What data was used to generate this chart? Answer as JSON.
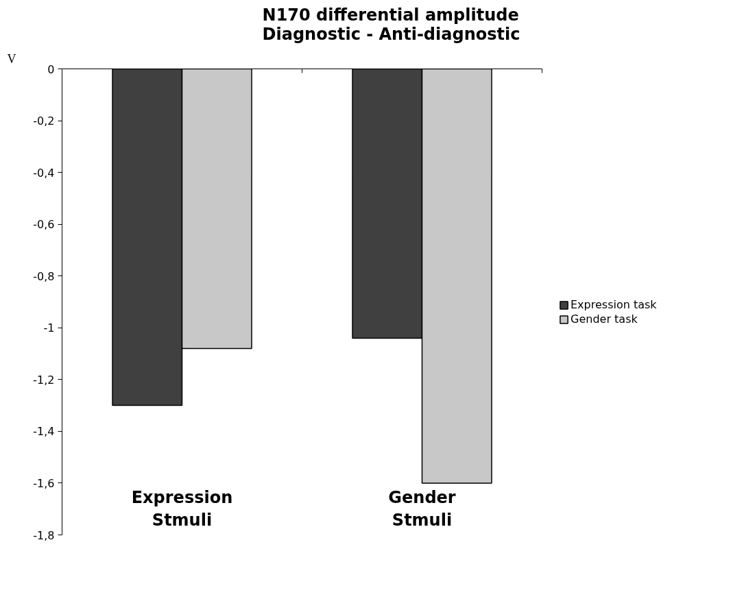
{
  "chart_data": {
    "type": "bar",
    "title": "N170 differential amplitude\nDiagnostic - Anti-diagnostic",
    "ylabel": "V",
    "categories": [
      "Expression Stmuli",
      "Gender Stmuli"
    ],
    "series": [
      {
        "name": "Expression task",
        "color": "#404040",
        "values": [
          -1.3,
          -1.04
        ]
      },
      {
        "name": "Gender task",
        "color": "#c8c8c8",
        "values": [
          -1.08,
          -1.6
        ]
      }
    ],
    "ylim": [
      -1.8,
      0
    ],
    "yticks": [
      {
        "value": 0,
        "label": "0"
      },
      {
        "value": -0.2,
        "label": "-0,2"
      },
      {
        "value": -0.4,
        "label": "-0,4"
      },
      {
        "value": -0.6,
        "label": "-0,6"
      },
      {
        "value": -0.8,
        "label": "-0,8"
      },
      {
        "value": -1,
        "label": "-1"
      },
      {
        "value": -1.2,
        "label": "-1,2"
      },
      {
        "value": -1.4,
        "label": "-1,4"
      },
      {
        "value": -1.6,
        "label": "-1,6"
      },
      {
        "value": -1.8,
        "label": "-1,8"
      }
    ],
    "grid": false,
    "legend": "right"
  }
}
